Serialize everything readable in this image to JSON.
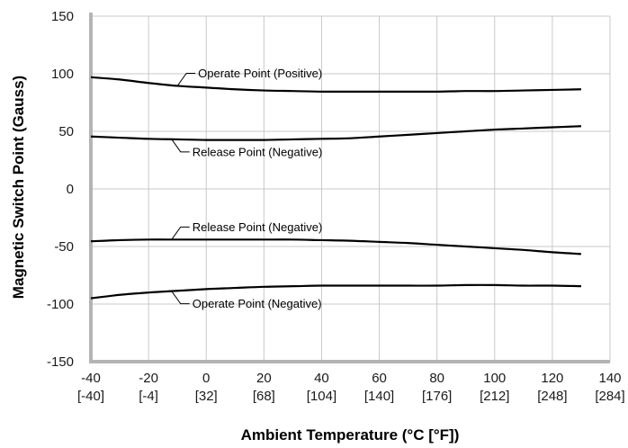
{
  "chart_data": {
    "type": "line",
    "xlabel": "Ambient Temperature (°C [°F])",
    "ylabel": "Magnetic Switch Point (Gauss)",
    "xlim": [
      -40,
      140
    ],
    "ylim": [
      -150,
      150
    ],
    "x_ticks": [
      {
        "c": "-40",
        "f": "[-40]"
      },
      {
        "c": "-20",
        "f": "[-4]"
      },
      {
        "c": "0",
        "f": "[32]"
      },
      {
        "c": "20",
        "f": "[68]"
      },
      {
        "c": "40",
        "f": "[104]"
      },
      {
        "c": "60",
        "f": "[140]"
      },
      {
        "c": "80",
        "f": "[176]"
      },
      {
        "c": "100",
        "f": "[212]"
      },
      {
        "c": "120",
        "f": "[248]"
      },
      {
        "c": "140",
        "f": "[284]"
      }
    ],
    "y_ticks": [
      "150",
      "100",
      "50",
      "0",
      "-50",
      "-100",
      "-150"
    ],
    "grid": true,
    "series": [
      {
        "name": "Operate Point (Positive)",
        "x": [
          -40,
          -30,
          -20,
          -10,
          0,
          10,
          20,
          30,
          40,
          50,
          60,
          70,
          80,
          90,
          100,
          110,
          120,
          130
        ],
        "y": [
          97,
          95,
          92,
          89.5,
          88,
          86.5,
          85.5,
          85,
          84.5,
          84.5,
          84.5,
          84.5,
          84.5,
          85,
          85,
          85.5,
          86,
          86.5
        ]
      },
      {
        "name": "Release Point (Negative)",
        "x": [
          -40,
          -30,
          -20,
          -10,
          0,
          10,
          20,
          30,
          40,
          50,
          60,
          70,
          80,
          90,
          100,
          110,
          120,
          130
        ],
        "y": [
          45.5,
          44.5,
          43.5,
          43,
          42.5,
          42.5,
          42.5,
          43,
          43.5,
          44,
          45.5,
          47,
          48.5,
          50,
          51.5,
          52.5,
          53.5,
          54.5
        ]
      },
      {
        "name": "Release Point (Negative)",
        "x": [
          -40,
          -30,
          -20,
          -10,
          0,
          10,
          20,
          30,
          40,
          50,
          60,
          70,
          80,
          90,
          100,
          110,
          120,
          130
        ],
        "y": [
          -45.5,
          -44.5,
          -44,
          -44,
          -44,
          -44,
          -44,
          -44,
          -44.5,
          -45,
          -46,
          -47,
          -48.5,
          -50,
          -51.5,
          -53,
          -55,
          -56.5
        ]
      },
      {
        "name": "Operate Point (Negative)",
        "x": [
          -40,
          -30,
          -20,
          -10,
          0,
          10,
          20,
          30,
          40,
          50,
          60,
          70,
          80,
          90,
          100,
          110,
          120,
          130
        ],
        "y": [
          -95,
          -92,
          -90,
          -88.5,
          -87,
          -86,
          -85,
          -84.5,
          -84,
          -84,
          -84,
          -84,
          -84,
          -83.5,
          -83.5,
          -84,
          -84,
          -84.5
        ]
      }
    ],
    "annotations": [
      {
        "text": "Operate Point (Positive)",
        "series": 0,
        "at_x": -10
      },
      {
        "text": "Release Point (Negative)",
        "series": 1,
        "at_x": -12
      },
      {
        "text": "Release Point (Negative)",
        "series": 2,
        "at_x": -12
      },
      {
        "text": "Operate Point (Negative)",
        "series": 3,
        "at_x": -12
      }
    ]
  }
}
